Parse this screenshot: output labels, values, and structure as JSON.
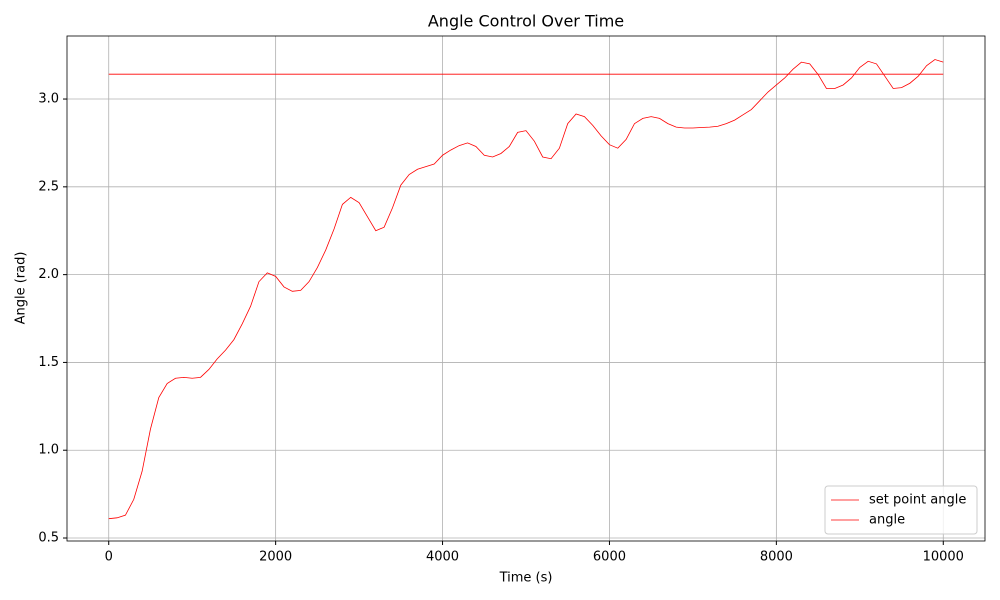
{
  "chart_data": {
    "type": "line",
    "title": "Angle Control Over Time",
    "xlabel": "Time (s)",
    "ylabel": "Angle (rad)",
    "xlim": [
      -500,
      10500
    ],
    "ylim": [
      0.483,
      3.359
    ],
    "xticks": [
      0,
      2000,
      4000,
      6000,
      8000,
      10000
    ],
    "yticks": [
      0.5,
      {
        "value": 1,
        "label": "1.0"
      },
      1.5,
      {
        "value": 2,
        "label": "2.0"
      },
      2.5,
      {
        "value": 3,
        "label": "3.0"
      }
    ],
    "grid": true,
    "legend": "lower right",
    "series": [
      {
        "name": "set point angle",
        "color": "#ff0000",
        "x": [
          0,
          10000
        ],
        "values": [
          3.1416,
          3.1416
        ]
      },
      {
        "name": "angle",
        "color": "#ff0000",
        "x": [
          0,
          100,
          200,
          300,
          400,
          500,
          600,
          700,
          800,
          900,
          1000,
          1100,
          1200,
          1300,
          1400,
          1500,
          1600,
          1700,
          1800,
          1900,
          2000,
          2100,
          2200,
          2300,
          2400,
          2500,
          2600,
          2700,
          2800,
          2900,
          3000,
          3100,
          3200,
          3300,
          3400,
          3500,
          3600,
          3700,
          3800,
          3900,
          4000,
          4100,
          4200,
          4300,
          4400,
          4500,
          4600,
          4700,
          4800,
          4900,
          5000,
          5100,
          5200,
          5300,
          5400,
          5500,
          5600,
          5700,
          5800,
          5900,
          6000,
          6100,
          6200,
          6300,
          6400,
          6500,
          6600,
          6700,
          6800,
          6900,
          7000,
          7100,
          7200,
          7300,
          7400,
          7500,
          7600,
          7700,
          7800,
          7900,
          8000,
          8100,
          8200,
          8300,
          8400,
          8500,
          8600,
          8700,
          8800,
          8900,
          9000,
          9100,
          9200,
          9300,
          9400,
          9500,
          9600,
          9700,
          9800,
          9900,
          10000
        ],
        "values": [
          0.61,
          0.615,
          0.63,
          0.72,
          0.88,
          1.12,
          1.3,
          1.38,
          1.41,
          1.415,
          1.41,
          1.415,
          1.46,
          1.52,
          1.57,
          1.63,
          1.72,
          1.82,
          1.96,
          2.01,
          1.99,
          1.93,
          1.905,
          1.91,
          1.96,
          2.04,
          2.14,
          2.26,
          2.4,
          2.44,
          2.41,
          2.33,
          2.25,
          2.27,
          2.38,
          2.51,
          2.57,
          2.6,
          2.615,
          2.63,
          2.68,
          2.71,
          2.735,
          2.75,
          2.73,
          2.68,
          2.67,
          2.69,
          2.73,
          2.81,
          2.82,
          2.76,
          2.67,
          2.66,
          2.72,
          2.86,
          2.915,
          2.9,
          2.85,
          2.79,
          2.74,
          2.72,
          2.77,
          2.86,
          2.89,
          2.9,
          2.89,
          2.86,
          2.84,
          2.835,
          2.835,
          2.838,
          2.84,
          2.845,
          2.86,
          2.88,
          2.91,
          2.94,
          2.99,
          3.04,
          3.08,
          3.12,
          3.17,
          3.21,
          3.2,
          3.14,
          3.06,
          3.06,
          3.08,
          3.12,
          3.18,
          3.215,
          3.2,
          3.13,
          3.06,
          3.065,
          3.09,
          3.13,
          3.19,
          3.225,
          3.21
        ]
      }
    ]
  }
}
